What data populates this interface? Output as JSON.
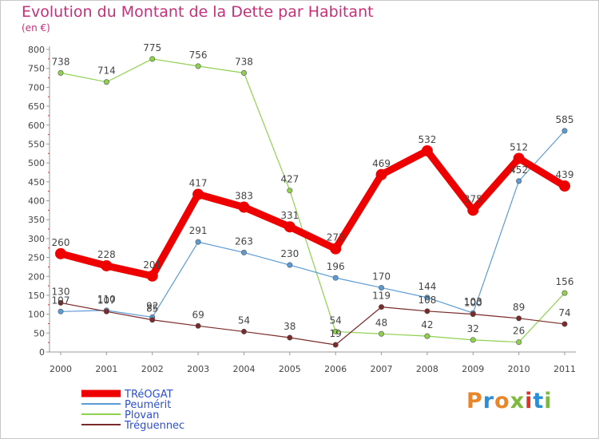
{
  "title": "Evolution du Montant de la Dette par Habitant",
  "unit": "(en €)",
  "brand": "Proxiti",
  "brand_colors": [
    "#e8862a",
    "#2a8fd6",
    "#e8862a",
    "#7cba3d",
    "#d6352a",
    "#2a8fd6",
    "#7cba3d"
  ],
  "chart_data": {
    "type": "line",
    "categories": [
      "2000",
      "2001",
      "2002",
      "2003",
      "2004",
      "2005",
      "2006",
      "2007",
      "2008",
      "2009",
      "2010",
      "2011"
    ],
    "ylim": [
      0,
      800
    ],
    "yticks": [
      0,
      50,
      100,
      150,
      200,
      250,
      300,
      350,
      400,
      450,
      500,
      550,
      600,
      650,
      700,
      750,
      800
    ],
    "grid": false,
    "legend_position": "bottom-left",
    "series": [
      {
        "name": "TRéOGAT",
        "color": "#ee0000",
        "values": [
          260,
          228,
          201,
          417,
          383,
          331,
          273,
          469,
          532,
          375,
          512,
          439
        ]
      },
      {
        "name": "Peumérit",
        "color": "#5b9bd5",
        "values": [
          107,
          110,
          92,
          291,
          263,
          230,
          196,
          170,
          144,
          103,
          452,
          585
        ]
      },
      {
        "name": "Plovan",
        "color": "#8fd14f",
        "values": [
          738,
          714,
          775,
          756,
          738,
          427,
          54,
          48,
          42,
          32,
          26,
          156
        ]
      },
      {
        "name": "Tréguennec",
        "color": "#7a2a2a",
        "values": [
          130,
          107,
          85,
          69,
          54,
          38,
          19,
          119,
          108,
          100,
          89,
          74
        ]
      }
    ]
  }
}
